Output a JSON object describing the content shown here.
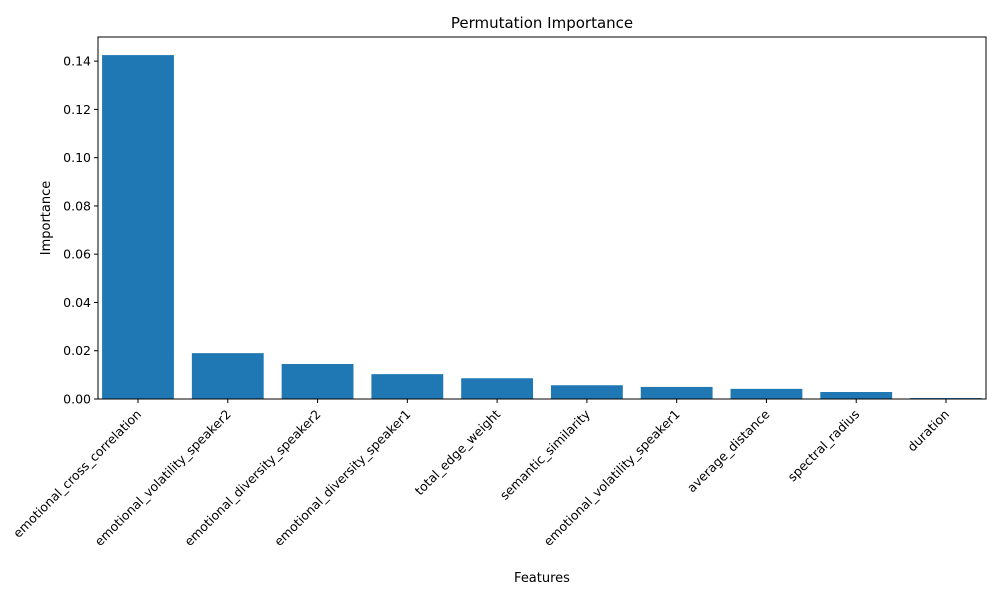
{
  "chart_data": {
    "type": "bar",
    "title": "Permutation Importance",
    "xlabel": "Features",
    "ylabel": "Importance",
    "categories": [
      "emotional_cross_correlation",
      "emotional_volatility_speaker2",
      "emotional_diversity_speaker2",
      "emotional_diversity_speaker1",
      "total_edge_weight",
      "semantic_similarity",
      "emotional_volatility_speaker1",
      "average_distance",
      "spectral_radius",
      "duration"
    ],
    "values": [
      0.1425,
      0.019,
      0.0145,
      0.0103,
      0.0086,
      0.0057,
      0.005,
      0.0042,
      0.0029,
      0.0004
    ],
    "ylim": [
      0,
      0.15
    ],
    "yticks": [
      0.0,
      0.02,
      0.04,
      0.06,
      0.08,
      0.1,
      0.12,
      0.14
    ],
    "ytick_labels": [
      "0.00",
      "0.02",
      "0.04",
      "0.06",
      "0.08",
      "0.10",
      "0.12",
      "0.14"
    ],
    "bar_color": "#1f77b4",
    "grid": false,
    "legend": false
  }
}
